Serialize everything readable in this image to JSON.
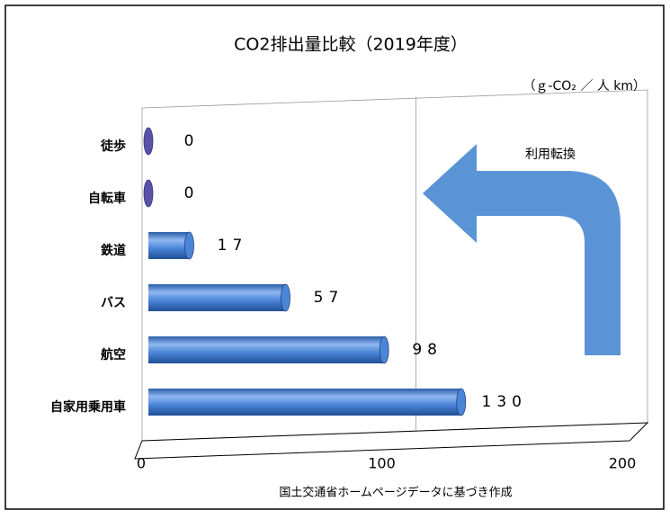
{
  "chart_data": {
    "type": "bar",
    "orientation": "horizontal",
    "title": "CO2排出量比較（2019年度）",
    "unit_label": "（ｇ-CO₂ ／ 人 km）",
    "annotation": "利用転換",
    "source": "国土交通省ホームページデータに基づき作成",
    "categories": [
      "徒歩",
      "自転車",
      "鉄道",
      "バス",
      "航空",
      "自家用乗用車"
    ],
    "values": [
      0,
      0,
      17,
      57,
      98,
      130
    ],
    "color": "#4a86d8",
    "xlim": [
      0,
      200
    ],
    "xticks": [
      0,
      100,
      200
    ],
    "grid": true
  }
}
